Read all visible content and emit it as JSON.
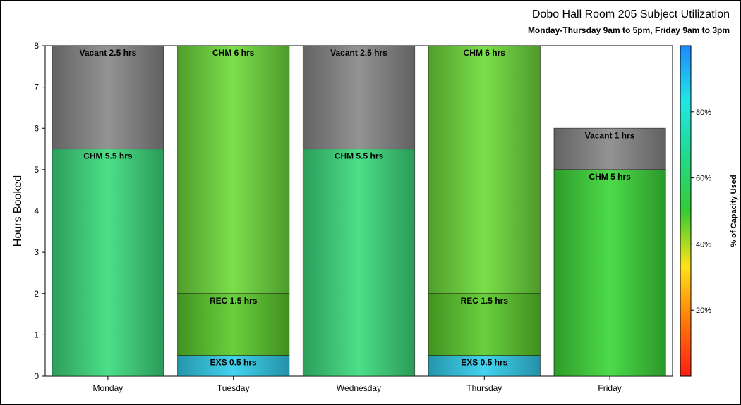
{
  "chart_data": {
    "type": "bar",
    "stacked": true,
    "title": "Dobo Hall Room 205 Subject Utilization",
    "subtitle": "Monday-Thursday 9am to 5pm, Friday 9am to 3pm",
    "ylabel": "Hours Booked",
    "ylim": [
      0,
      8
    ],
    "yticks": [
      "0",
      "1",
      "2",
      "3",
      "4",
      "5",
      "6",
      "7",
      "8"
    ],
    "categories": [
      "Monday",
      "Tuesday",
      "Wednesday",
      "Thursday",
      "Friday"
    ],
    "bars": [
      {
        "category": "Monday",
        "segments": [
          {
            "label": "CHM 5.5 hrs",
            "value": 5.5,
            "color": "#3ddc7e"
          },
          {
            "label": "Vacant 2.5 hrs",
            "value": 2.5,
            "color": "#8a8a8a"
          }
        ]
      },
      {
        "category": "Tuesday",
        "segments": [
          {
            "label": "EXS 0.5 hrs",
            "value": 0.5,
            "color": "#33cfee"
          },
          {
            "label": "REC 1.5 hrs",
            "value": 1.5,
            "color": "#5ccc2c"
          },
          {
            "label": "CHM 6 hrs",
            "value": 6,
            "color": "#6fdc3c"
          }
        ]
      },
      {
        "category": "Wednesday",
        "segments": [
          {
            "label": "CHM 5.5 hrs",
            "value": 5.5,
            "color": "#3ddc7e"
          },
          {
            "label": "Vacant 2.5 hrs",
            "value": 2.5,
            "color": "#8a8a8a"
          }
        ]
      },
      {
        "category": "Thursday",
        "segments": [
          {
            "label": "EXS 0.5 hrs",
            "value": 0.5,
            "color": "#33cfee"
          },
          {
            "label": "REC 1.5 hrs",
            "value": 1.5,
            "color": "#5ccc2c"
          },
          {
            "label": "CHM 6 hrs",
            "value": 6,
            "color": "#6fdc3c"
          }
        ]
      },
      {
        "category": "Friday",
        "segments": [
          {
            "label": "CHM 5 hrs",
            "value": 5,
            "color": "#3ed83a"
          },
          {
            "label": "Vacant 1 hrs",
            "value": 1,
            "color": "#8a8a8a"
          }
        ]
      }
    ],
    "colorbar": {
      "label": "% of Capacity Used",
      "ticks": [
        "20%",
        "40%",
        "60%",
        "80%"
      ],
      "tick_values": [
        20,
        40,
        60,
        80
      ],
      "range": [
        0,
        100
      ],
      "colors": [
        "#ff1e14",
        "#ff7a0a",
        "#ffe31a",
        "#33cc33",
        "#22d98c",
        "#22e6e6",
        "#1e88ff"
      ]
    }
  }
}
